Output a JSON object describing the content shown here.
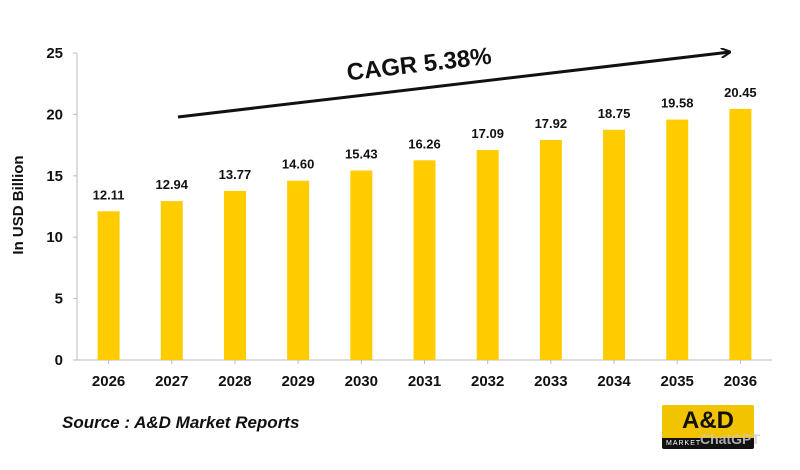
{
  "chart_data": {
    "type": "bar",
    "categories": [
      "2026",
      "2027",
      "2028",
      "2029",
      "2030",
      "2031",
      "2032",
      "2033",
      "2034",
      "2035",
      "2036"
    ],
    "values": [
      12.11,
      12.94,
      13.77,
      14.6,
      15.43,
      16.26,
      17.09,
      17.92,
      18.75,
      19.58,
      20.45
    ],
    "data_labels": [
      "12.11",
      "12.94",
      "13.77",
      "14.60",
      "15.43",
      "16.26",
      "17.09",
      "17.92",
      "18.75",
      "19.58",
      "20.45"
    ],
    "ylabel": "In USD Billion",
    "xlabel": "",
    "ylim": [
      0,
      25
    ],
    "yticks": [
      0,
      5,
      10,
      15,
      20,
      25
    ],
    "grid": false,
    "bar_color": "#FFCC00",
    "annotation": "CAGR 5.38%"
  },
  "source": "Source : A&D Market Reports",
  "logo": {
    "main": "A&D",
    "sub": "MARKET",
    "accent": "#F2C300"
  },
  "watermark": "ChatGPT"
}
